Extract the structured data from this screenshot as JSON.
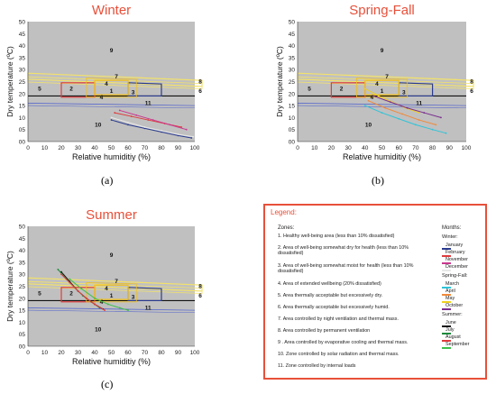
{
  "colors": {
    "title": "#e8503a",
    "plot_bg": "#c0c0c0",
    "zone2": "#e03b3b",
    "zone1": "#f0c020",
    "zone3": "#2a3b8f",
    "yellow_band": "#f3e26a",
    "zone11": "#5a6acb"
  },
  "panels": [
    {
      "title": "Winter",
      "label": "(a)",
      "xlabel": "Relative humiditiy (%)",
      "ylabel": "Dry temperature (ºC)",
      "xticks": [
        "0",
        "10",
        "20",
        "30",
        "40",
        "50",
        "60",
        "70",
        "80",
        "90",
        "100"
      ],
      "yticks": [
        "00",
        "05",
        "10",
        "15",
        "20",
        "25",
        "30",
        "35",
        "40",
        "45",
        "50"
      ],
      "zone_numbers": [
        "9",
        "7",
        "8",
        "5",
        "2",
        "4",
        "1",
        "3",
        "6",
        "4",
        "11",
        "10"
      ]
    },
    {
      "title": "Spring-Fall",
      "label": "(b)",
      "xlabel": "Relative humiditiy (%)",
      "ylabel": "Dry temperature (ºC)",
      "xticks": [
        "0",
        "10",
        "20",
        "30",
        "40",
        "50",
        "60",
        "70",
        "80",
        "90",
        "100"
      ],
      "yticks": [
        "00",
        "05",
        "10",
        "15",
        "20",
        "25",
        "30",
        "35",
        "40",
        "45",
        "50"
      ],
      "zone_numbers": [
        "9",
        "7",
        "8",
        "5",
        "2",
        "4",
        "1",
        "3",
        "6",
        "4",
        "11",
        "10"
      ]
    },
    {
      "title": "Summer",
      "label": "(c)",
      "xlabel": "Relative humiditiy (%)",
      "ylabel": "Dry temperature (ºC)",
      "xticks": [
        "0",
        "10",
        "20",
        "30",
        "40",
        "50",
        "60",
        "70",
        "80",
        "90",
        "100"
      ],
      "yticks": [
        "00",
        "05",
        "10",
        "15",
        "20",
        "25",
        "30",
        "35",
        "40",
        "45",
        "50"
      ],
      "zone_numbers": [
        "9",
        "7",
        "8",
        "5",
        "2",
        "4",
        "1",
        "3",
        "6",
        "4",
        "11",
        "10"
      ]
    }
  ],
  "legend": {
    "title": "Legend:",
    "zones_title": "Zones:",
    "zones": [
      "1. Healthy well-being area (less than 10% dissatisfied)",
      "2. Area of well-being somewhat dry for health (less than 10% dissatisfied)",
      "3. Area of well-being somewhat moist for health (less than 10% dissatisfied)",
      "4. Area of extended wellbeing (20% dissatisfied)",
      "5. Area thermally acceptable but excessively dry.",
      "6. Area thermally acceptable but excessively humid.",
      "7. Area controlled by night ventilation and thermal mass.",
      "8. Area controlled by permanent ventilation",
      "9 . Area controlled by evaporative cooling and thermal mass.",
      "10. Zone controlled by solar radiation and thermal mass.",
      "11. Zone controlled by internal loads"
    ],
    "months_title": "Months:",
    "seasons": [
      {
        "name": "Winter:",
        "months": [
          {
            "name": "January",
            "color": "#2a3b8f"
          },
          {
            "name": "February",
            "color": "#e03b3b"
          },
          {
            "name": "November",
            "color": "#c9378f"
          },
          {
            "name": "December",
            "color": "#e8e8e8"
          }
        ]
      },
      {
        "name": "Spring-Fall:",
        "months": [
          {
            "name": "March",
            "color": "#2ec4d8"
          },
          {
            "name": "April",
            "color": "#f08a3a"
          },
          {
            "name": "May",
            "color": "#f0d020"
          },
          {
            "name": "October",
            "color": "#7a2f8f"
          }
        ]
      },
      {
        "name": "Summer:",
        "months": [
          {
            "name": "June",
            "color": "#111111"
          },
          {
            "name": "July",
            "color": "#1b8a3a"
          },
          {
            "name": "August",
            "color": "#e03b3b"
          },
          {
            "name": "September",
            "color": "#3cc04a"
          }
        ]
      }
    ]
  },
  "chart_data": [
    {
      "type": "line",
      "title": "Winter",
      "xlabel": "Relative humiditiy (%)",
      "ylabel": "Dry temperature (ºC)",
      "xlim": [
        0,
        100
      ],
      "ylim": [
        0,
        50
      ],
      "series": [
        {
          "name": "January",
          "color": "#2a3b8f",
          "x": [
            50,
            60,
            70,
            80,
            90,
            98
          ],
          "y": [
            9,
            7,
            5.5,
            4,
            2.5,
            1.5
          ]
        },
        {
          "name": "February",
          "color": "#e03b3b",
          "x": [
            52,
            62,
            72,
            82,
            92
          ],
          "y": [
            12,
            10.5,
            9,
            7.5,
            6
          ]
        },
        {
          "name": "November",
          "color": "#c9378f",
          "x": [
            55,
            65,
            75,
            85,
            95
          ],
          "y": [
            13,
            11,
            9,
            7,
            5
          ]
        },
        {
          "name": "December",
          "color": "#e8e8e8",
          "x": [
            50,
            60,
            70,
            80,
            90,
            99
          ],
          "y": [
            10,
            8,
            6,
            4.5,
            3,
            2
          ]
        }
      ]
    },
    {
      "type": "line",
      "title": "Spring-Fall",
      "xlabel": "Relative humiditiy (%)",
      "ylabel": "Dry temperature (ºC)",
      "xlim": [
        0,
        100
      ],
      "ylim": [
        0,
        50
      ],
      "series": [
        {
          "name": "March",
          "color": "#2ec4d8",
          "x": [
            40,
            50,
            60,
            70,
            80,
            88
          ],
          "y": [
            15,
            12,
            9.5,
            7,
            5,
            3.5
          ]
        },
        {
          "name": "April",
          "color": "#f08a3a",
          "x": [
            42,
            52,
            62,
            72,
            82
          ],
          "y": [
            17,
            14,
            11.5,
            9,
            7
          ]
        },
        {
          "name": "May",
          "color": "#f0d020",
          "x": [
            40,
            48,
            56,
            64,
            72
          ],
          "y": [
            22,
            19,
            16.5,
            14,
            12
          ]
        },
        {
          "name": "October",
          "color": "#7a2f8f",
          "x": [
            45,
            55,
            65,
            75,
            85
          ],
          "y": [
            19,
            16.5,
            14,
            12,
            10
          ]
        }
      ]
    },
    {
      "type": "line",
      "title": "Summer",
      "xlabel": "Relative humiditiy (%)",
      "ylabel": "Dry temperature (ºC)",
      "xlim": [
        0,
        100
      ],
      "ylim": [
        0,
        50
      ],
      "series": [
        {
          "name": "June",
          "color": "#111111",
          "x": [
            20,
            25,
            30,
            35,
            40,
            45
          ],
          "y": [
            31,
            27,
            23,
            20,
            17.5,
            15.5
          ]
        },
        {
          "name": "July",
          "color": "#1b8a3a",
          "x": [
            18,
            23,
            28,
            33,
            38,
            43
          ],
          "y": [
            32,
            28,
            24.5,
            21,
            18.5,
            16
          ]
        },
        {
          "name": "August",
          "color": "#e03b3b",
          "x": [
            20,
            25,
            30,
            35,
            40,
            46
          ],
          "y": [
            30,
            26.5,
            23,
            20,
            17.5,
            15
          ]
        },
        {
          "name": "September",
          "color": "#3cc04a",
          "x": [
            25,
            32,
            40,
            48,
            55,
            60
          ],
          "y": [
            28,
            24,
            20,
            17.5,
            16,
            15
          ]
        }
      ]
    }
  ]
}
